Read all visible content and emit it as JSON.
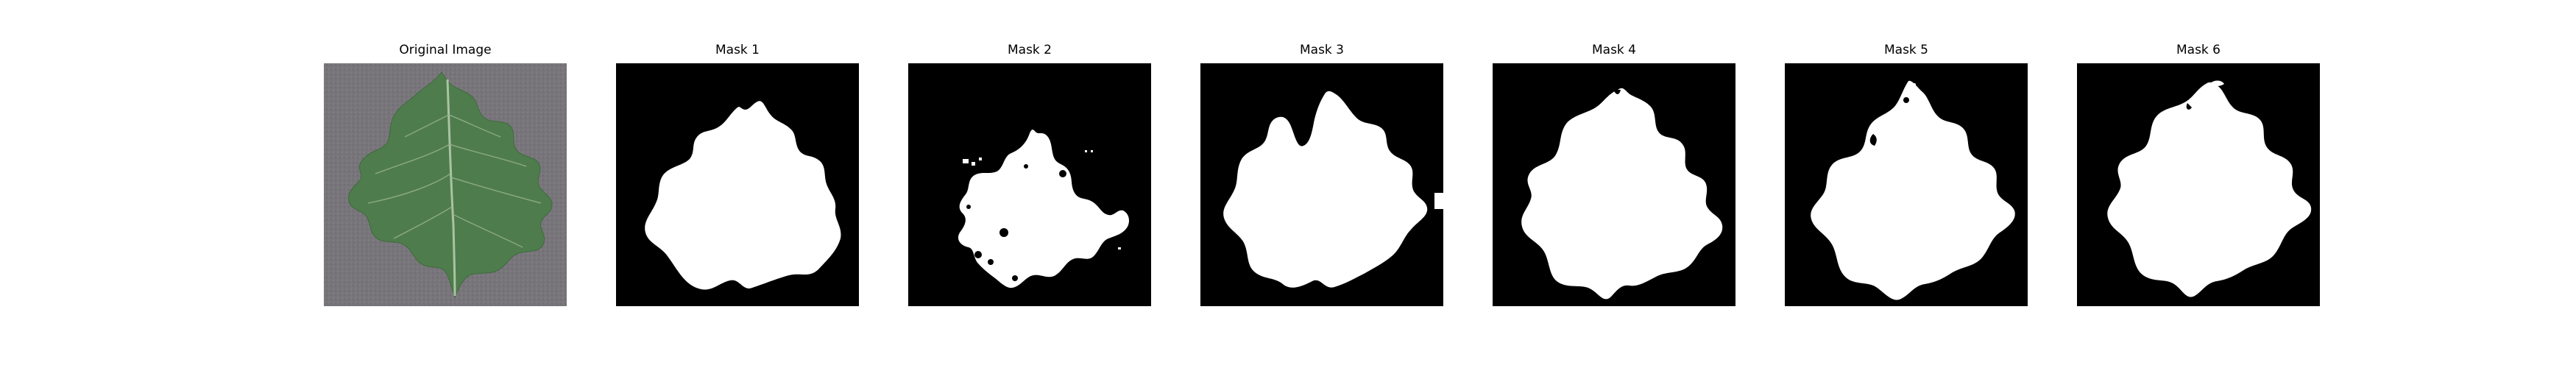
{
  "panels": [
    {
      "title": "Original Image",
      "kind": "photo",
      "subject": "leaf-icon"
    },
    {
      "title": "Mask 1",
      "kind": "mask"
    },
    {
      "title": "Mask 2",
      "kind": "mask"
    },
    {
      "title": "Mask 3",
      "kind": "mask"
    },
    {
      "title": "Mask 4",
      "kind": "mask"
    },
    {
      "title": "Mask 5",
      "kind": "mask"
    },
    {
      "title": "Mask 6",
      "kind": "mask"
    }
  ],
  "colors": {
    "background": "#ffffff",
    "mask_background": "#000000",
    "mask_foreground": "#ffffff",
    "photo_background": "#78767a",
    "leaf": "#4e7a4c"
  }
}
